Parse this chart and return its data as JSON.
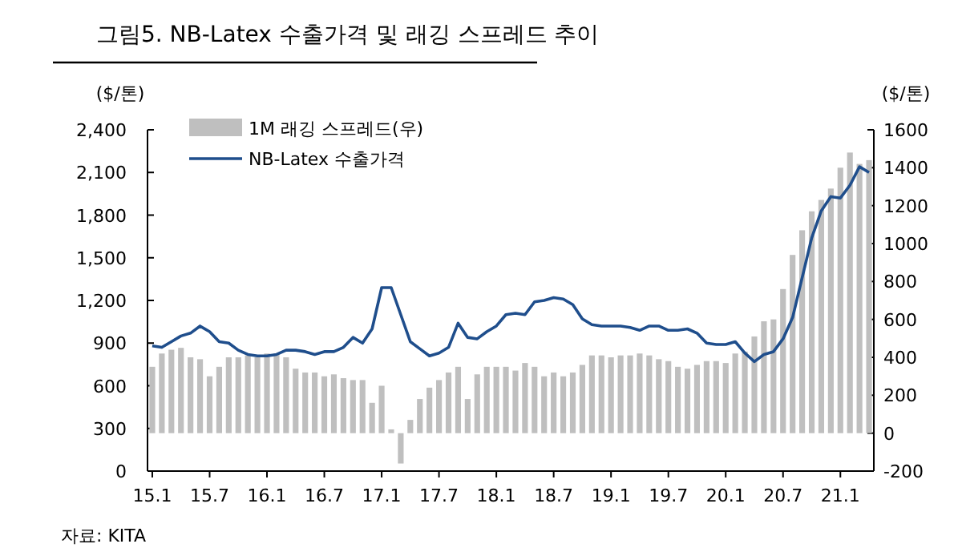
{
  "chart_data": {
    "type": "bar",
    "title": "그림5. NB-Latex 수출가격 및 래깅 스프레드 추이",
    "ylabel": "($/톤)",
    "y2label": "($/톤)",
    "categories": [
      "15.1",
      null,
      null,
      null,
      null,
      null,
      "15.7",
      null,
      null,
      null,
      null,
      null,
      "16.1",
      null,
      null,
      null,
      null,
      null,
      "16.7",
      null,
      null,
      null,
      null,
      null,
      "17.1",
      null,
      null,
      null,
      null,
      null,
      "17.7",
      null,
      null,
      null,
      null,
      null,
      "18.1",
      null,
      null,
      null,
      null,
      null,
      "18.7",
      null,
      null,
      null,
      null,
      null,
      "19.1",
      null,
      null,
      null,
      null,
      null,
      "19.7",
      null,
      null,
      null,
      null,
      null,
      "20.1",
      null,
      null,
      null,
      null,
      null,
      "20.7",
      null,
      null,
      null,
      null,
      null,
      "21.1",
      null,
      null,
      null
    ],
    "series": [
      {
        "name": "1M 래깅 스프레드(우)",
        "type": "bar",
        "axis": "y2",
        "color": "#bfbfbf",
        "values": [
          350,
          420,
          440,
          450,
          400,
          390,
          300,
          350,
          400,
          400,
          410,
          400,
          420,
          420,
          400,
          340,
          320,
          320,
          300,
          310,
          290,
          280,
          280,
          160,
          250,
          20,
          -160,
          70,
          180,
          240,
          280,
          320,
          350,
          180,
          310,
          350,
          350,
          350,
          330,
          370,
          350,
          300,
          320,
          300,
          320,
          360,
          410,
          410,
          400,
          410,
          410,
          420,
          410,
          390,
          380,
          350,
          340,
          360,
          380,
          380,
          370,
          420,
          430,
          510,
          590,
          600,
          760,
          940,
          1070,
          1170,
          1230,
          1290,
          1400,
          1480,
          1420,
          1440
        ]
      },
      {
        "name": "NB-Latex 수출가격",
        "type": "line",
        "color": "#1f4e8c",
        "values": [
          880,
          870,
          910,
          950,
          970,
          1020,
          980,
          910,
          900,
          850,
          820,
          810,
          810,
          820,
          850,
          850,
          840,
          820,
          840,
          840,
          870,
          940,
          900,
          1000,
          1290,
          1290,
          1100,
          910,
          860,
          810,
          830,
          870,
          1040,
          940,
          930,
          980,
          1020,
          1100,
          1110,
          1100,
          1190,
          1200,
          1220,
          1210,
          1170,
          1070,
          1030,
          1020,
          1020,
          1020,
          1010,
          990,
          1020,
          1020,
          990,
          990,
          1000,
          970,
          900,
          890,
          890,
          910,
          830,
          770,
          820,
          840,
          930,
          1080,
          1360,
          1640,
          1830,
          1930,
          1920,
          2010,
          2140,
          2100
        ]
      }
    ],
    "ylim": [
      0,
      2400
    ],
    "yticks": [
      0,
      300,
      600,
      900,
      {
        "value": 1200,
        "label": "1,200"
      },
      {
        "value": 1500,
        "label": "1,500"
      },
      {
        "value": 1800,
        "label": "1,800"
      },
      {
        "value": 2100,
        "label": "2,100"
      },
      {
        "value": 2400,
        "label": "2,400"
      }
    ],
    "y2lim": [
      -200,
      1600
    ],
    "y2ticks": [
      -200,
      0,
      200,
      400,
      600,
      800,
      1000,
      1200,
      1400,
      1600
    ],
    "legend": "top left",
    "grid": false,
    "annotations": [
      "자료: KITA"
    ]
  }
}
